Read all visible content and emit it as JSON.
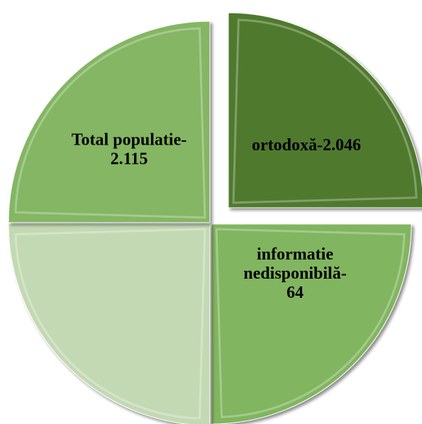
{
  "chart_data": {
    "type": "pie",
    "slices": [
      {
        "key": "ortodoxa",
        "label_lines": [
          "ortodoxă-2.046"
        ],
        "value": 2046,
        "color": "#4f7a2d"
      },
      {
        "key": "nedisponibila",
        "label_lines": [
          "informatie",
          "nedisponibilă-",
          "64"
        ],
        "value": 64,
        "color": "#81b55f"
      },
      {
        "key": "blank",
        "label_lines": [],
        "value": null,
        "color": "#c3d9b3"
      },
      {
        "key": "total",
        "label_lines": [
          "Total populatie-",
          "2.115"
        ],
        "value": 2115,
        "color": "#84b663"
      }
    ]
  }
}
